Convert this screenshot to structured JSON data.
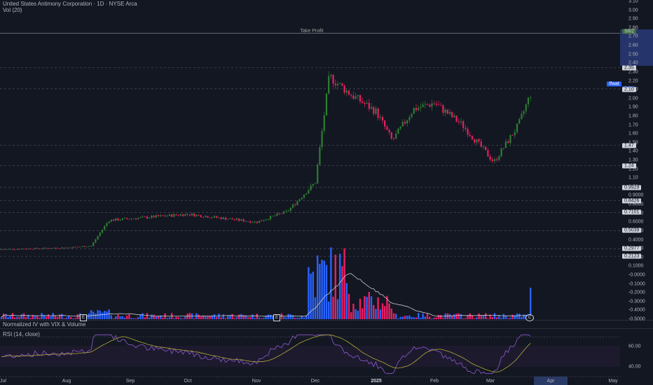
{
  "header": {
    "title": "United States Antimony Corporation · 1D · NYSE Arca",
    "volume_label": "Vol (20)",
    "pane_iv_label": "Normalized IV with VIX & Volume",
    "rsi_label": "RSI (14, close)"
  },
  "annotations": {
    "take_profit": "Take Profit",
    "take_profit_tag": "Stv2",
    "earnings_mark": "E",
    "current_mark": "C",
    "live_tag": "Ifwat"
  },
  "price_axis": {
    "ticks": [
      "3.10",
      "3.00",
      "2.90",
      "2.80",
      "2.70",
      "2.60",
      "2.50",
      "2.40",
      "2.30",
      "2.20",
      "2.10",
      "2.00",
      "1.90",
      "1.80",
      "1.70",
      "1.60",
      "1.50",
      "1.40",
      "1.30",
      "1.20",
      "1.10",
      "1.00",
      "0.9000",
      "0.8000",
      "0.7000",
      "0.6000",
      "0.5000",
      "0.4000",
      "0.3000",
      "0.2000",
      "0.1000",
      "-0.0000",
      "-0.1000",
      "-0.2000",
      "-0.3000",
      "-0.4000",
      "-0.5000"
    ],
    "level_tags": [
      "2.35",
      "2.11",
      "2.10",
      "1.47",
      "1.24",
      "0.9929",
      "0.8426",
      "0.7101",
      "0.5039",
      "0.2977",
      "0.2123"
    ]
  },
  "rsi_axis": {
    "ticks": [
      "60.00",
      "40.00"
    ]
  },
  "time_axis": [
    "Jul",
    "Aug",
    "Sep",
    "Oct",
    "Nov",
    "Dec",
    "2025",
    "Feb",
    "Mar",
    "Apr",
    "May"
  ],
  "colors": {
    "background": "#131722",
    "up": "#26a69a",
    "down": "#ef5350",
    "bull_candle": "#2e7d32",
    "bear_candle": "#e91e63",
    "vol_up": "#2962ff",
    "vol_down": "#e91e63",
    "rsi_line": "#9c27b0",
    "rsi_ma": "#b2ab35",
    "grid": "#2a2e39"
  },
  "chart_data": {
    "type": "candlestick",
    "title": "United States Antimony Corporation · 1D · NYSE Arca",
    "x_range": [
      "Jul",
      "May"
    ],
    "y_range": [
      -0.5,
      3.1
    ],
    "levels": [
      2.74,
      2.35,
      2.11,
      1.47,
      1.24,
      0.9929,
      0.8426,
      0.7101,
      0.5039,
      0.2977,
      0.2123
    ],
    "trend_points": [
      {
        "x": "Jul",
        "close": 0.29
      },
      {
        "x": "Aug",
        "close": 0.31
      },
      {
        "x": "mid Aug",
        "close": 0.33
      },
      {
        "x": "Sep",
        "close": 0.62
      },
      {
        "x": "Oct",
        "close": 0.69
      },
      {
        "x": "Nov",
        "close": 0.6
      },
      {
        "x": "late Nov",
        "close": 0.72
      },
      {
        "x": "early Dec",
        "close": 1.05
      },
      {
        "x": "Dec",
        "close": 2.25
      },
      {
        "x": "mid Dec",
        "close": 2.05
      },
      {
        "x": "2025",
        "close": 1.85
      },
      {
        "x": "mid Jan",
        "close": 1.52
      },
      {
        "x": "late Jan",
        "close": 1.88
      },
      {
        "x": "Feb",
        "close": 1.95
      },
      {
        "x": "late Feb",
        "close": 1.7
      },
      {
        "x": "Mar",
        "close": 1.28
      },
      {
        "x": "mid Mar",
        "close": 1.7
      },
      {
        "x": "late Mar",
        "close": 2.11
      }
    ],
    "rsi_range": [
      30,
      75
    ],
    "rsi_reference": [
      70,
      50,
      30
    ]
  }
}
